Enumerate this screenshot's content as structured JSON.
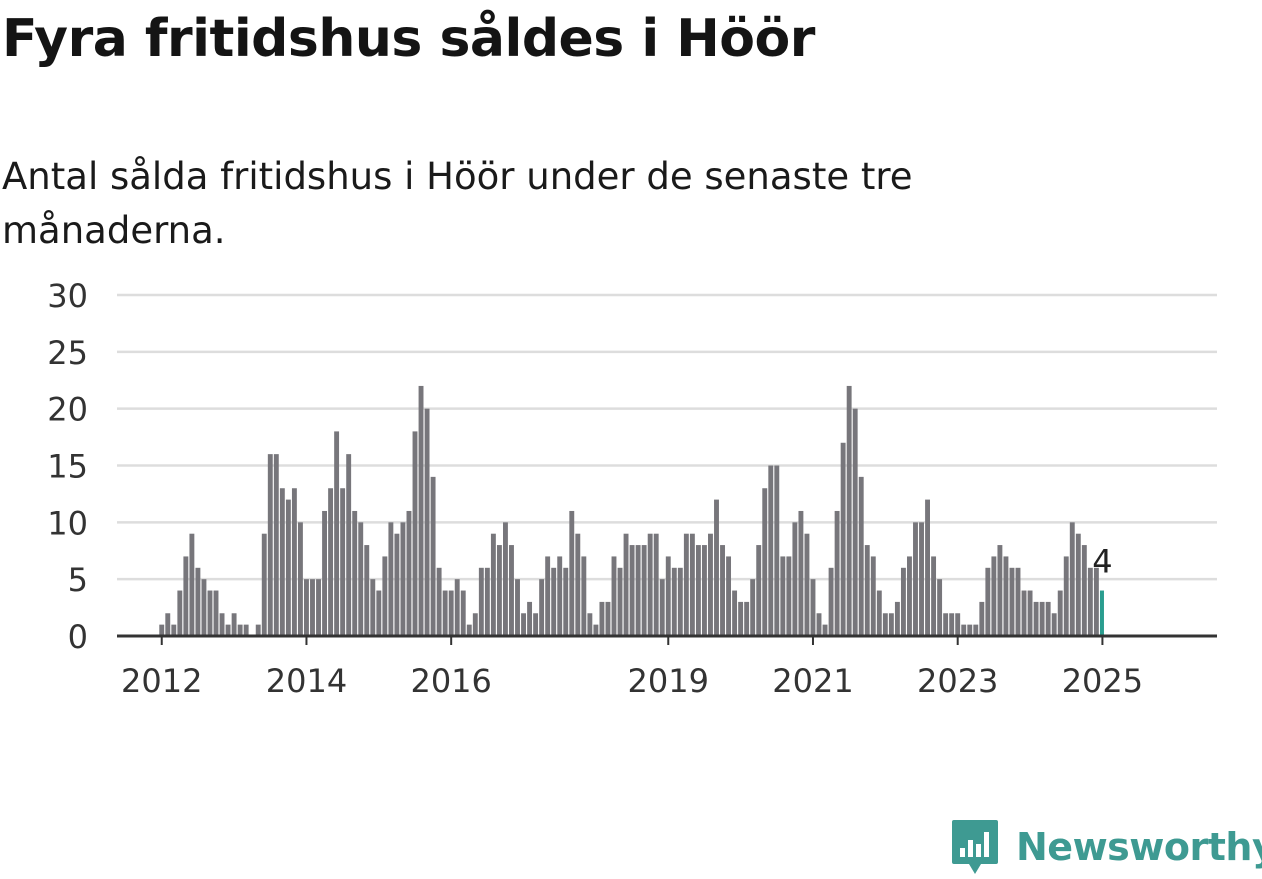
{
  "title": "Fyra fritidshus såldes i Höör",
  "subtitle": "Antal sålda fritidshus i Höör under de senaste tre månaderna.",
  "brand": {
    "name": "Newsworthy",
    "icon": "newsworthy-logo-icon"
  },
  "colors": {
    "bar": "#77767b",
    "highlight": "#2a9d8f",
    "grid": "#dddddd",
    "axis": "#333333",
    "brand": "#3e9a92"
  },
  "chart_data": {
    "type": "bar",
    "title": "",
    "xlabel": "",
    "ylabel": "",
    "ylim": [
      0,
      30
    ],
    "yticks": [
      0,
      5,
      10,
      15,
      20,
      25,
      30
    ],
    "x_tick_labels": [
      "2012",
      "2014",
      "2016",
      "2019",
      "2021",
      "2023",
      "2025"
    ],
    "x_tick_positions": [
      8,
      32,
      56,
      92,
      116,
      140,
      164
    ],
    "values": [
      0,
      0,
      0,
      0,
      0,
      0,
      0,
      0,
      1,
      2,
      1,
      4,
      7,
      9,
      6,
      5,
      4,
      4,
      2,
      1,
      2,
      1,
      1,
      0,
      1,
      9,
      16,
      16,
      13,
      12,
      13,
      10,
      5,
      5,
      5,
      11,
      13,
      18,
      13,
      16,
      11,
      10,
      8,
      5,
      4,
      7,
      10,
      9,
      10,
      11,
      18,
      22,
      20,
      14,
      6,
      4,
      4,
      5,
      4,
      1,
      2,
      6,
      6,
      9,
      8,
      10,
      8,
      5,
      2,
      3,
      2,
      5,
      7,
      6,
      7,
      6,
      11,
      9,
      7,
      2,
      1,
      3,
      3,
      7,
      6,
      9,
      8,
      8,
      8,
      9,
      9,
      5,
      7,
      6,
      6,
      9,
      9,
      8,
      8,
      9,
      12,
      8,
      7,
      4,
      3,
      3,
      5,
      8,
      13,
      15,
      15,
      7,
      7,
      10,
      11,
      9,
      5,
      2,
      1,
      6,
      11,
      17,
      22,
      20,
      14,
      8,
      7,
      4,
      2,
      2,
      3,
      6,
      7,
      10,
      10,
      12,
      7,
      5,
      2,
      2,
      2,
      1,
      1,
      1,
      3,
      6,
      7,
      8,
      7,
      6,
      6,
      4,
      4,
      3,
      3,
      3,
      2,
      4,
      7,
      10,
      9,
      8,
      6,
      6,
      4
    ],
    "highlight_index": 164,
    "annotations": [
      {
        "index": 164,
        "text": "4"
      }
    ]
  }
}
